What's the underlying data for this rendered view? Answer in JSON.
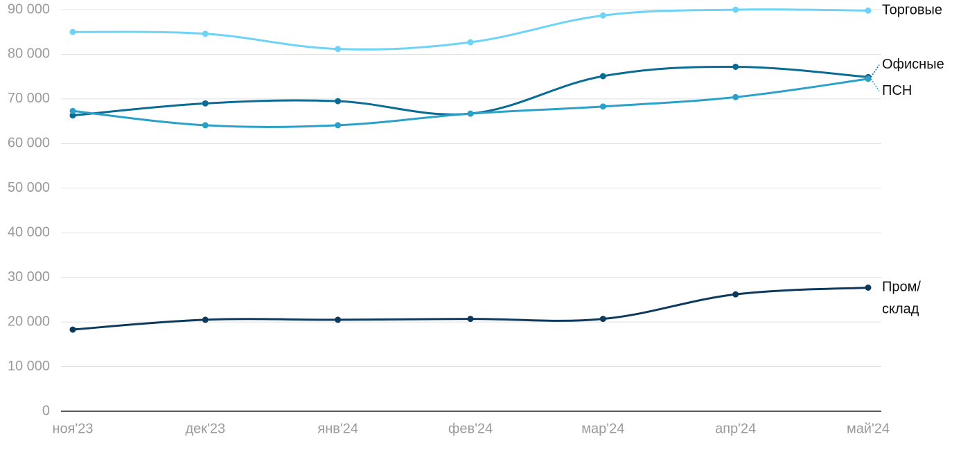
{
  "chart_data": {
    "type": "line",
    "categories": [
      "ноя'23",
      "дек'23",
      "янв'24",
      "фев'24",
      "мар'24",
      "апр'24",
      "май'24"
    ],
    "series": [
      {
        "name": "Торговые",
        "color": "#6dd3f7",
        "values": [
          85000,
          84600,
          81200,
          82700,
          88700,
          90000,
          89800
        ]
      },
      {
        "name": "Офисные",
        "color": "#0a6b94",
        "values": [
          66300,
          69000,
          69500,
          66700,
          75100,
          77200,
          74900
        ]
      },
      {
        "name": "ПСН",
        "color": "#2ba0c9",
        "values": [
          67300,
          64100,
          64100,
          66700,
          68300,
          70400,
          74500
        ]
      },
      {
        "name": "Пром/склад",
        "color": "#0d3a5c",
        "values": [
          18300,
          20500,
          20500,
          20700,
          20700,
          26200,
          27700
        ]
      }
    ],
    "ylim": [
      0,
      90000
    ],
    "yticks": [
      0,
      {
        "value": 10000,
        "label": "10 000"
      },
      {
        "value": 20000,
        "label": "20 000"
      },
      {
        "value": 30000,
        "label": "30 000"
      },
      {
        "value": 40000,
        "label": "40 000"
      },
      {
        "value": 50000,
        "label": "50 000"
      },
      {
        "value": 60000,
        "label": "60 000"
      },
      {
        "value": 70000,
        "label": "70 000"
      },
      {
        "value": 80000,
        "label": "80 000"
      },
      {
        "value": 90000,
        "label": "90 000"
      }
    ],
    "grid": true
  }
}
